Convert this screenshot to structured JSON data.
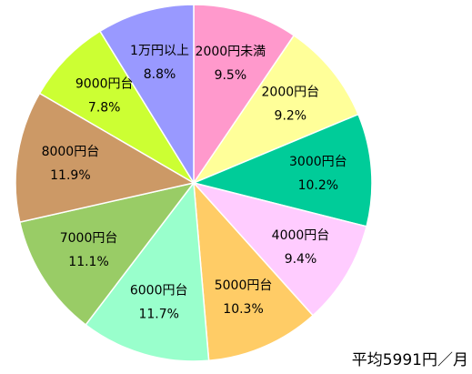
{
  "chart_data": {
    "type": "pie",
    "categories": [
      "2000円未満",
      "2000円台",
      "3000円台",
      "4000円台",
      "5000円台",
      "6000円台",
      "7000円台",
      "8000円台",
      "9000円台",
      "1万円以上"
    ],
    "values": [
      9.5,
      9.2,
      10.2,
      9.4,
      10.3,
      11.7,
      11.1,
      11.9,
      7.8,
      8.8
    ],
    "value_labels": [
      "9.5%",
      "9.2%",
      "10.2%",
      "9.4%",
      "10.3%",
      "11.7%",
      "11.1%",
      "11.9%",
      "7.8%",
      "8.8%"
    ],
    "colors": [
      "#ff99cc",
      "#ffff99",
      "#00cc99",
      "#ffccff",
      "#ffcc66",
      "#99ffcc",
      "#99cc66",
      "#cc9966",
      "#ccff33",
      "#9999ff"
    ],
    "annotation": "平均5991円／月"
  }
}
